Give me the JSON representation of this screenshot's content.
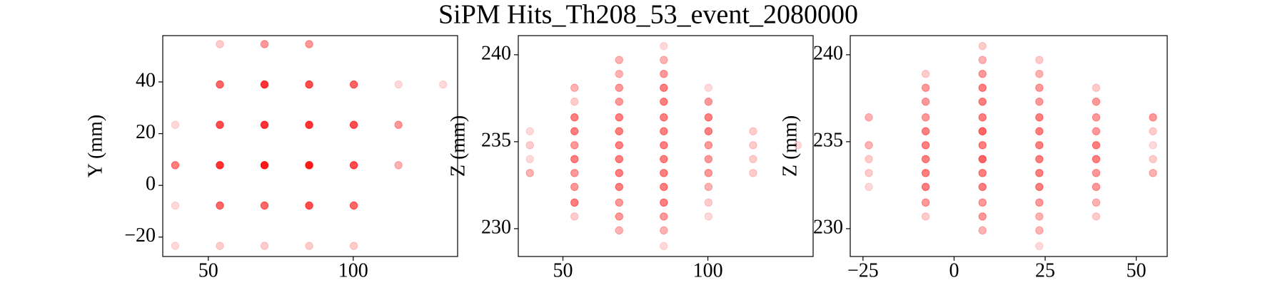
{
  "title": "SiPM Hits_Th208_53_event_2080000",
  "chart_data": [
    {
      "type": "scatter",
      "y_label": "Y (mm)",
      "color": "#ff0000",
      "xlim": [
        34.3,
        136
      ],
      "ylim": [
        -27.5,
        57.9
      ],
      "xticks": [
        50,
        100
      ],
      "yticks": [
        {
          "value": -20,
          "label": "−20"
        },
        0,
        20,
        40
      ],
      "x": [
        54,
        69.4,
        84.8,
        54,
        69.4,
        84.8,
        100.2,
        115.6,
        131,
        38.6,
        54,
        69.4,
        84.8,
        100.2,
        115.6,
        38.6,
        54,
        69.4,
        84.8,
        100.2,
        115.6,
        38.6,
        54,
        69.4,
        84.8,
        100.2,
        38.6,
        54,
        69.4,
        84.8,
        100.2
      ],
      "y": [
        54.6,
        54.6,
        54.6,
        39,
        39,
        39,
        39,
        39,
        39,
        23.4,
        23.4,
        23.4,
        23.4,
        23.4,
        23.4,
        7.8,
        7.8,
        7.8,
        7.8,
        7.8,
        7.8,
        -7.8,
        -7.8,
        -7.8,
        -7.8,
        -7.8,
        -23.4,
        -23.4,
        -23.4,
        -23.4,
        -23.4
      ],
      "alpha": [
        0.2,
        0.4,
        0.4,
        0.6,
        0.8,
        0.7,
        0.6,
        0.15,
        0.15,
        0.15,
        0.7,
        0.8,
        0.8,
        0.7,
        0.4,
        0.5,
        0.8,
        0.9,
        0.9,
        0.7,
        0.3,
        0.15,
        0.6,
        0.6,
        0.7,
        0.6,
        0.15,
        0.2,
        0.2,
        0.2,
        0.2
      ]
    },
    {
      "type": "scatter",
      "y_label": "Z (mm)",
      "color": "#ff0000",
      "xlim": [
        34.6,
        136.3
      ],
      "ylim": [
        228.4,
        241.1
      ],
      "xticks": [
        50,
        100
      ],
      "yticks": [
        230,
        235,
        240
      ],
      "x": [
        38.6,
        38.6,
        38.6,
        38.6,
        54,
        54,
        54,
        54,
        54,
        54,
        54,
        54,
        54,
        54,
        69.4,
        69.4,
        69.4,
        69.4,
        69.4,
        69.4,
        69.4,
        69.4,
        69.4,
        69.4,
        69.4,
        69.4,
        69.4,
        84.8,
        84.8,
        84.8,
        84.8,
        84.8,
        84.8,
        84.8,
        84.8,
        84.8,
        84.8,
        84.8,
        84.8,
        84.8,
        84.8,
        84.8,
        100.2,
        100.2,
        100.2,
        100.2,
        100.2,
        100.2,
        100.2,
        100.2,
        100.2,
        100.2,
        115.6,
        115.6,
        115.6,
        115.6,
        131
      ],
      "y": [
        235.6,
        234.8,
        234.0,
        233.2,
        238.1,
        237.3,
        236.4,
        235.6,
        234.8,
        234.0,
        233.2,
        232.4,
        231.5,
        230.7,
        239.7,
        238.9,
        238.1,
        237.3,
        236.4,
        235.6,
        234.8,
        234.0,
        233.2,
        232.4,
        231.5,
        230.7,
        229.9,
        240.5,
        239.7,
        238.9,
        238.1,
        237.3,
        236.4,
        235.6,
        234.8,
        234.0,
        233.2,
        232.4,
        231.5,
        230.7,
        229.9,
        229.0,
        238.1,
        237.3,
        236.4,
        235.6,
        234.8,
        234.0,
        233.2,
        232.4,
        231.5,
        230.7,
        235.6,
        234.8,
        234.0,
        233.2,
        234.8
      ],
      "alpha": [
        0.15,
        0.2,
        0.15,
        0.3,
        0.3,
        0.2,
        0.5,
        0.5,
        0.4,
        0.5,
        0.4,
        0.4,
        0.5,
        0.2,
        0.3,
        0.3,
        0.4,
        0.4,
        0.5,
        0.5,
        0.5,
        0.5,
        0.5,
        0.5,
        0.4,
        0.4,
        0.3,
        0.15,
        0.3,
        0.4,
        0.5,
        0.5,
        0.5,
        0.5,
        0.5,
        0.5,
        0.5,
        0.5,
        0.5,
        0.4,
        0.3,
        0.15,
        0.15,
        0.4,
        0.5,
        0.5,
        0.4,
        0.4,
        0.4,
        0.3,
        0.2,
        0.15,
        0.2,
        0.2,
        0.2,
        0.2,
        0.15
      ]
    },
    {
      "type": "scatter",
      "y_label": "Z (mm)",
      "color": "#ff0000",
      "xlim": [
        -28.5,
        58.5
      ],
      "ylim": [
        228.4,
        241.1
      ],
      "xticks": [
        {
          "value": -25,
          "label": "−25"
        },
        0,
        25,
        50
      ],
      "yticks": [
        230,
        235,
        240
      ],
      "x": [
        -23.4,
        -23.4,
        -23.4,
        -23.4,
        -23.4,
        -7.8,
        -7.8,
        -7.8,
        -7.8,
        -7.8,
        -7.8,
        -7.8,
        -7.8,
        -7.8,
        -7.8,
        -7.8,
        7.8,
        7.8,
        7.8,
        7.8,
        7.8,
        7.8,
        7.8,
        7.8,
        7.8,
        7.8,
        7.8,
        7.8,
        7.8,
        7.8,
        23.4,
        23.4,
        23.4,
        23.4,
        23.4,
        23.4,
        23.4,
        23.4,
        23.4,
        23.4,
        23.4,
        23.4,
        23.4,
        23.4,
        39,
        39,
        39,
        39,
        39,
        39,
        39,
        39,
        39,
        39,
        54.6,
        54.6,
        54.6,
        54.6,
        54.6
      ],
      "y": [
        236.4,
        234.8,
        234.0,
        233.2,
        232.4,
        238.9,
        238.1,
        237.3,
        236.4,
        235.6,
        234.8,
        234.0,
        233.2,
        232.4,
        231.5,
        230.7,
        240.5,
        239.7,
        238.9,
        238.1,
        237.3,
        236.4,
        235.6,
        234.8,
        234.0,
        233.2,
        232.4,
        231.5,
        230.7,
        229.9,
        239.7,
        238.9,
        238.1,
        237.3,
        236.4,
        235.6,
        234.8,
        234.0,
        233.2,
        232.4,
        231.5,
        230.7,
        229.9,
        229.0,
        238.1,
        237.3,
        236.4,
        235.6,
        234.8,
        234.0,
        233.2,
        232.4,
        231.5,
        230.7,
        236.4,
        235.6,
        234.8,
        234.0,
        233.2
      ],
      "alpha": [
        0.3,
        0.3,
        0.2,
        0.2,
        0.15,
        0.2,
        0.4,
        0.4,
        0.4,
        0.5,
        0.5,
        0.5,
        0.5,
        0.5,
        0.4,
        0.2,
        0.2,
        0.3,
        0.4,
        0.5,
        0.5,
        0.5,
        0.6,
        0.5,
        0.6,
        0.5,
        0.5,
        0.4,
        0.4,
        0.3,
        0.2,
        0.3,
        0.4,
        0.4,
        0.5,
        0.5,
        0.5,
        0.5,
        0.5,
        0.5,
        0.4,
        0.3,
        0.3,
        0.15,
        0.2,
        0.4,
        0.4,
        0.4,
        0.5,
        0.5,
        0.4,
        0.4,
        0.3,
        0.2,
        0.4,
        0.2,
        0.15,
        0.2,
        0.3
      ]
    }
  ]
}
